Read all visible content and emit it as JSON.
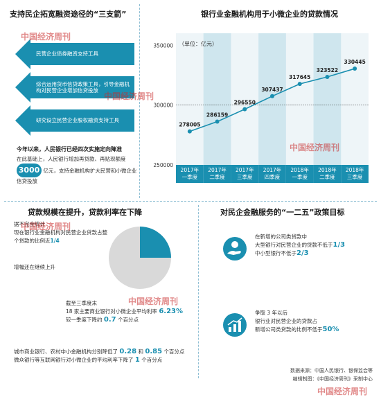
{
  "left_top": {
    "title": "支持民企拓宽融资途径的“三支箭”",
    "arrows": [
      "民营企业债券融资支持工具",
      "综合运用货币信贷政策工具，引导金融机构对民营企业增加信贷投放",
      "研究设立民营企业股权融资支持工具"
    ],
    "note_title": "今年以来，人民银行已经四次实施定向降准",
    "note_line1": "在此基础上，人民银行增加再贷款、再贴现额度",
    "note_amount": "3000",
    "note_line2": "亿元，支持金融机构扩大民营和小微企业信贷投放"
  },
  "chart_data": {
    "type": "line",
    "title": "银行业金融机构用于小微企业的贷款情况",
    "unit_label": "（单位：亿元）",
    "categories": [
      "2017年一季度",
      "2017年二季度",
      "2017年三季度",
      "2017年四季度",
      "2018年一季度",
      "2018年二季度",
      "2018年三季度"
    ],
    "category_lines": [
      [
        "2017年",
        "一季度"
      ],
      [
        "2017年",
        "二季度"
      ],
      [
        "2017年",
        "三季度"
      ],
      [
        "2017年",
        "四季度"
      ],
      [
        "2018年",
        "一季度"
      ],
      [
        "2018年",
        "二季度"
      ],
      [
        "2018年",
        "三季度"
      ]
    ],
    "values": [
      278005,
      286159,
      296550,
      307437,
      317645,
      323522,
      330445
    ],
    "value_labels": [
      "278005",
      "286159",
      "296550",
      "307437",
      "317645",
      "323522",
      "330445"
    ],
    "yticks": [
      "350000",
      "300000",
      "250000"
    ],
    "ylim": [
      250000,
      360000
    ],
    "line_color": "#1a8fb0"
  },
  "left_bottom": {
    "title": "贷款规模在提升，贷款利率在下降",
    "pie_label1": "据不完全统计",
    "pie_label2": "现在银行业金融机构对民营企业贷款占整个贷款的比例近",
    "pie_fraction": "1/4",
    "pie_share": 0.25,
    "pie_label3": "增幅还在继续上升",
    "rate_line1": "截至三季度末",
    "rate_line2": "18 家主要商业银行对小微企业平均利率",
    "rate_value": "6.23%",
    "rate_line3": "较一季度下降约",
    "rate_drop": "0.7",
    "rate_unit": "个百分点",
    "bank_line1a": "城市商业银行、农村中小金融机构分别降低了",
    "bank_val1": "0.28",
    "bank_and": "和",
    "bank_val2": "0.85",
    "bank_line1b": "个百分点",
    "bank_line2a": "微众银行等互联网银行对小微企业的平均利率下降了",
    "bank_val3": "1",
    "bank_line2b": "个百分点"
  },
  "right_bottom": {
    "title": "对民企金融服务的“一二五”政策目标",
    "goal1_line1": "在新增的公司类贷款中",
    "goal1_line2": "大型银行对民营企业的贷款不低于",
    "goal1_val1": "1/3",
    "goal1_line3": "中小型银行不低于",
    "goal1_val2": "2/3",
    "goal2_line1": "争取 3 年以后",
    "goal2_line2": "银行业对民营企业的贷款占",
    "goal2_line3": "新增公司类贷款的比例不低于",
    "goal2_val": "50%"
  },
  "footer": {
    "source": "数据来源：中国人民银行、银保监会等",
    "editor": "编辑制图：《中国经济周刊》采制中心"
  },
  "watermark": "中国经济周刊"
}
